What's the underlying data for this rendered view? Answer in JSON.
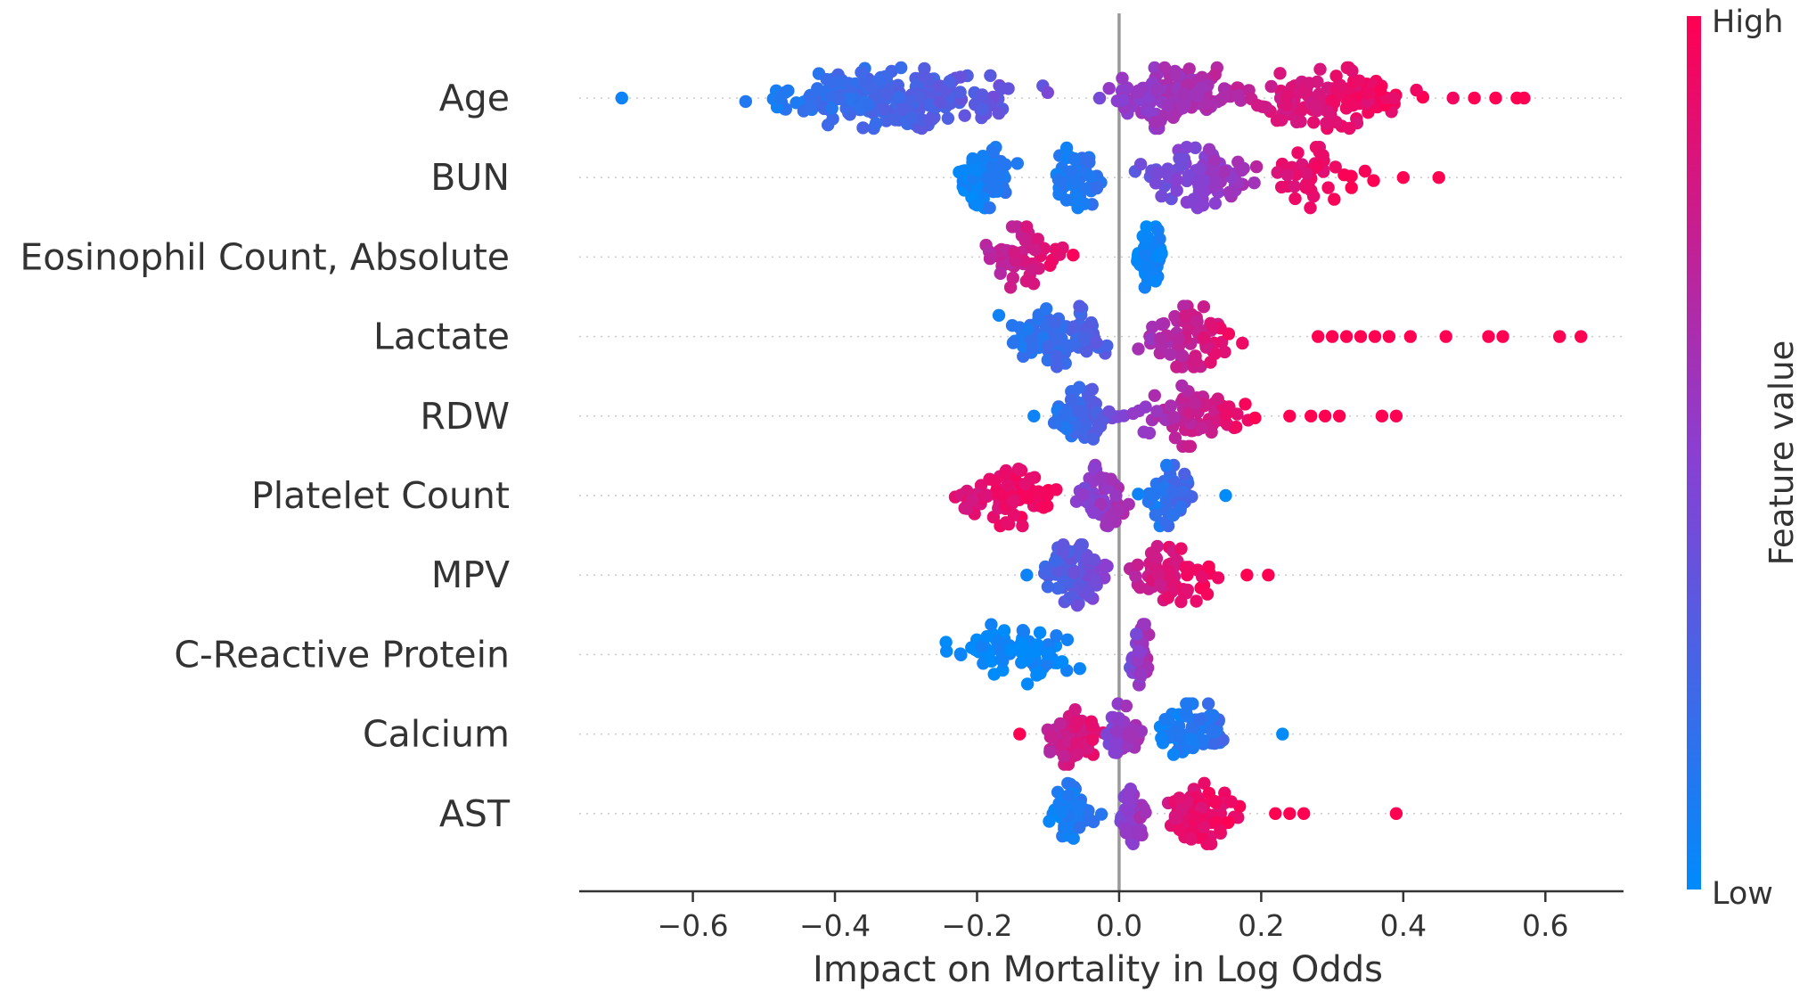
{
  "chart_data": {
    "type": "scatter",
    "subtype": "shap-beeswarm",
    "xlabel": "Impact on Mortality in Log Odds",
    "xlim": [
      -0.76,
      0.71
    ],
    "xticks": [
      {
        "value": -0.6,
        "label": "−0.6"
      },
      {
        "value": -0.4,
        "label": "−0.4"
      },
      {
        "value": -0.2,
        "label": "−0.2"
      },
      {
        "value": 0.0,
        "label": "0.0"
      },
      {
        "value": 0.2,
        "label": "0.2"
      },
      {
        "value": 0.4,
        "label": "0.4"
      },
      {
        "value": 0.6,
        "label": "0.6"
      }
    ],
    "colorbar": {
      "title": "Feature value",
      "high_label": "High",
      "low_label": "Low",
      "low_color": "#008bfb",
      "mid_color": "#8a3fd1",
      "high_color": "#ff0052"
    },
    "features": [
      {
        "name": "Age",
        "mean_abs_impact": 0.27,
        "clusters": [
          {
            "x_range": [
              -0.58,
              -0.05
            ],
            "feature_value": [
              0.05,
              0.45
            ],
            "count": 260
          },
          {
            "x_range": [
              -0.05,
              0.2
            ],
            "feature_value": [
              0.45,
              0.75
            ],
            "count": 150
          },
          {
            "x_range": [
              0.15,
              0.45
            ],
            "feature_value": [
              0.75,
              1.0
            ],
            "count": 130
          }
        ],
        "outliers": [
          [
            -0.7,
            0.05
          ],
          [
            0.47,
            0.95
          ],
          [
            0.5,
            1.0
          ],
          [
            0.53,
            1.0
          ],
          [
            0.56,
            1.0
          ],
          [
            0.57,
            1.0
          ]
        ]
      },
      {
        "name": "BUN",
        "mean_abs_impact": 0.13,
        "clusters": [
          {
            "x_range": [
              -0.25,
              -0.13
            ],
            "feature_value": [
              0.0,
              0.15
            ],
            "count": 70
          },
          {
            "x_range": [
              -0.11,
              0.0
            ],
            "feature_value": [
              0.05,
              0.2
            ],
            "count": 55
          },
          {
            "x_range": [
              0.0,
              0.22
            ],
            "feature_value": [
              0.3,
              0.7
            ],
            "count": 90
          },
          {
            "x_range": [
              0.18,
              0.37
            ],
            "feature_value": [
              0.8,
              1.0
            ],
            "count": 45
          }
        ],
        "outliers": [
          [
            0.4,
            1.0
          ],
          [
            0.45,
            1.0
          ]
        ]
      },
      {
        "name": "Eosinophil Count, Absolute",
        "mean_abs_impact": 0.08,
        "clusters": [
          {
            "x_range": [
              -0.22,
              -0.04
            ],
            "feature_value": [
              0.6,
              1.0
            ],
            "count": 55
          },
          {
            "x_range": [
              0.02,
              0.07
            ],
            "feature_value": [
              0.0,
              0.08
            ],
            "count": 60
          }
        ],
        "outliers": []
      },
      {
        "name": "Lactate",
        "mean_abs_impact": 0.07,
        "clusters": [
          {
            "x_range": [
              -0.2,
              0.02
            ],
            "feature_value": [
              0.05,
              0.35
            ],
            "count": 90
          },
          {
            "x_range": [
              0.0,
              0.19
            ],
            "feature_value": [
              0.5,
              1.0
            ],
            "count": 70
          }
        ],
        "outliers": [
          [
            0.28,
            1.0
          ],
          [
            0.3,
            1.0
          ],
          [
            0.32,
            1.0
          ],
          [
            0.34,
            1.0
          ],
          [
            0.36,
            1.0
          ],
          [
            0.38,
            1.0
          ],
          [
            0.41,
            1.0
          ],
          [
            0.46,
            1.0
          ],
          [
            0.52,
            1.0
          ],
          [
            0.54,
            1.0
          ],
          [
            0.62,
            1.0
          ],
          [
            0.65,
            1.0
          ]
        ]
      },
      {
        "name": "RDW",
        "mean_abs_impact": 0.07,
        "clusters": [
          {
            "x_range": [
              -0.1,
              0.0
            ],
            "feature_value": [
              0.1,
              0.4
            ],
            "count": 80
          },
          {
            "x_range": [
              0.0,
              0.21
            ],
            "feature_value": [
              0.5,
              1.0
            ],
            "count": 80
          }
        ],
        "outliers": [
          [
            -0.12,
            0.05
          ],
          [
            0.24,
            1.0
          ],
          [
            0.27,
            1.0
          ],
          [
            0.29,
            1.0
          ],
          [
            0.31,
            1.0
          ],
          [
            0.37,
            1.0
          ],
          [
            0.39,
            1.0
          ]
        ]
      },
      {
        "name": "Platelet Count",
        "mean_abs_impact": 0.07,
        "clusters": [
          {
            "x_range": [
              -0.27,
              -0.06
            ],
            "feature_value": [
              0.8,
              1.0
            ],
            "count": 80
          },
          {
            "x_range": [
              -0.08,
              0.03
            ],
            "feature_value": [
              0.4,
              0.7
            ],
            "count": 50
          },
          {
            "x_range": [
              0.02,
              0.12
            ],
            "feature_value": [
              0.05,
              0.3
            ],
            "count": 60
          }
        ],
        "outliers": [
          [
            0.15,
            0.0
          ]
        ]
      },
      {
        "name": "MPV",
        "mean_abs_impact": 0.05,
        "clusters": [
          {
            "x_range": [
              -0.12,
              0.0
            ],
            "feature_value": [
              0.2,
              0.5
            ],
            "count": 80
          },
          {
            "x_range": [
              0.0,
              0.15
            ],
            "feature_value": [
              0.7,
              1.0
            ],
            "count": 70
          }
        ],
        "outliers": [
          [
            -0.13,
            0.05
          ],
          [
            0.18,
            1.0
          ],
          [
            0.21,
            1.0
          ]
        ]
      },
      {
        "name": "C-Reactive Protein",
        "mean_abs_impact": 0.05,
        "clusters": [
          {
            "x_range": [
              -0.27,
              0.0
            ],
            "feature_value": [
              0.0,
              0.08
            ],
            "count": 75
          },
          {
            "x_range": [
              0.01,
              0.05
            ],
            "feature_value": [
              0.35,
              0.75
            ],
            "count": 45
          }
        ],
        "outliers": []
      },
      {
        "name": "Calcium",
        "mean_abs_impact": 0.05,
        "clusters": [
          {
            "x_range": [
              -0.12,
              -0.01
            ],
            "feature_value": [
              0.65,
              0.95
            ],
            "count": 70
          },
          {
            "x_range": [
              -0.03,
              0.04
            ],
            "feature_value": [
              0.4,
              0.65
            ],
            "count": 45
          },
          {
            "x_range": [
              0.02,
              0.19
            ],
            "feature_value": [
              0.0,
              0.25
            ],
            "count": 70
          }
        ],
        "outliers": [
          [
            -0.14,
            1.0
          ],
          [
            0.23,
            0.0
          ]
        ]
      },
      {
        "name": "AST",
        "mean_abs_impact": 0.05,
        "clusters": [
          {
            "x_range": [
              -0.11,
              -0.02
            ],
            "feature_value": [
              0.0,
              0.2
            ],
            "count": 60
          },
          {
            "x_range": [
              -0.01,
              0.05
            ],
            "feature_value": [
              0.4,
              0.7
            ],
            "count": 50
          },
          {
            "x_range": [
              0.04,
              0.2
            ],
            "feature_value": [
              0.8,
              1.0
            ],
            "count": 65
          }
        ],
        "outliers": [
          [
            0.22,
            1.0
          ],
          [
            0.24,
            1.0
          ],
          [
            0.26,
            1.0
          ],
          [
            0.39,
            1.0
          ]
        ]
      }
    ]
  }
}
